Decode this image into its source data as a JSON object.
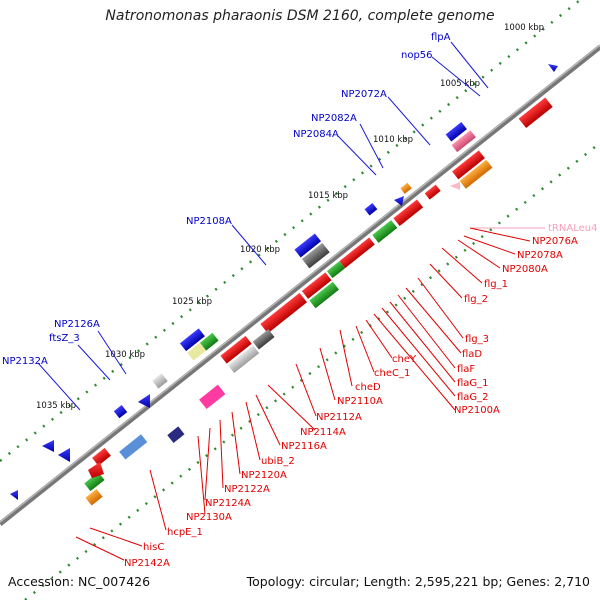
{
  "title": "Natronomonas pharaonis DSM 2160, complete genome",
  "footer": {
    "accession": "Accession: NC_007426",
    "stats": "Topology: circular; Length: 2,595,221 bp; Genes: 2,710"
  },
  "scale_labels": [
    "1000 kbp",
    "1005 kbp",
    "1010 kbp",
    "1015 kbp",
    "1020 kbp",
    "1025 kbp",
    "1030 kbp",
    "1035 kbp"
  ],
  "labels": {
    "flpA": "flpA",
    "nop56": "nop56",
    "NP2072A": "NP2072A",
    "NP2082A": "NP2082A",
    "NP2084A": "NP2084A",
    "NP2108A": "NP2108A",
    "NP2126A": "NP2126A",
    "ftsZ_3": "ftsZ_3",
    "NP2132A": "NP2132A",
    "tRNALeu4": "tRNALeu4",
    "NP2076A": "NP2076A",
    "NP2078A": "NP2078A",
    "NP2080A": "NP2080A",
    "flg_1": "flg_1",
    "flg_2": "flg_2",
    "flg_3": "flg_3",
    "flaD": "flaD",
    "flaF": "flaF",
    "flaG_1": "flaG_1",
    "flaG_2": "flaG_2",
    "NP2100A": "NP2100A",
    "cheY": "cheY",
    "cheC_1": "cheC_1",
    "cheD": "cheD",
    "NP2110A": "NP2110A",
    "NP2112A": "NP2112A",
    "NP2114A": "NP2114A",
    "NP2116A": "NP2116A",
    "ubiB_2": "ubiB_2",
    "NP2120A": "NP2120A",
    "NP2122A": "NP2122A",
    "NP2124A": "NP2124A",
    "NP2130A": "NP2130A",
    "hcpE_1": "hcpE_1",
    "hisC": "hisC",
    "NP2142A": "NP2142A"
  },
  "colors": {
    "forward_label": "#0000cc",
    "reverse_label": "#e00000",
    "trna_label": "#f4a0b8",
    "backbone": "#777777",
    "tick": "#2e8b2e"
  }
}
